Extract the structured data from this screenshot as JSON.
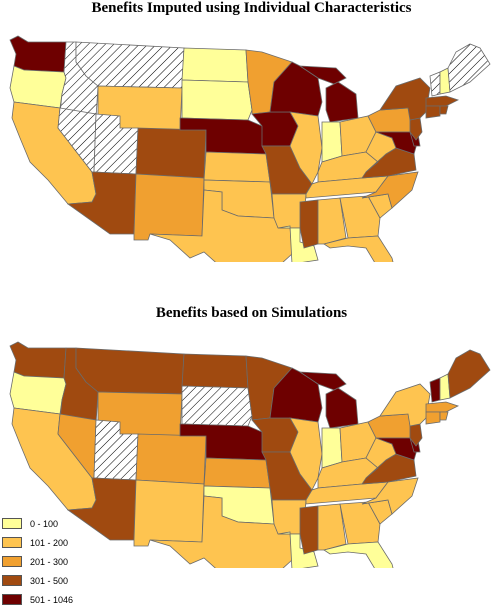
{
  "titles": {
    "top": "Benefits Imputed using Individual Characteristics",
    "bottom": "Benefits based on Simulations"
  },
  "legend": [
    {
      "label": "0 - 100",
      "color": "#ffff99"
    },
    {
      "label": "101 - 200",
      "color": "#fec450"
    },
    {
      "label": "201 - 300",
      "color": "#f0a030"
    },
    {
      "label": "301 - 500",
      "color": "#a04a10"
    },
    {
      "label": "501 - 1046",
      "color": "#6e0000"
    }
  ],
  "no_data_pattern": "diagonal-hatch",
  "maps": [
    {
      "name": "Benefits Imputed using Individual Characteristics",
      "classes": {
        "WA": 4,
        "OR": 0,
        "ID": "nd",
        "MT": "nd",
        "WY": 1,
        "NV": "nd",
        "UT": "nd",
        "CA": 1,
        "AZ": 3,
        "CO": 3,
        "NM": 2,
        "ND": 0,
        "SD": 0,
        "NE": 4,
        "KS": 1,
        "OK": 1,
        "TX": 1,
        "MN": 2,
        "IA": 4,
        "MO": 3,
        "AR": 1,
        "LA": 0,
        "WI": 4,
        "IL": 1,
        "MI": 4,
        "IN": 0,
        "OH": 1,
        "KY": 1,
        "TN": 1,
        "MS": 3,
        "AL": 1,
        "GA": 1,
        "FL": 1,
        "SC": 1,
        "NC": 2,
        "VA": 3,
        "WV": 1,
        "MD": 4,
        "DE": 4,
        "NJ": 3,
        "PA": 2,
        "NY": 3,
        "VT": "nd",
        "NH": 0,
        "ME": "nd",
        "MA": 3,
        "CT": 3,
        "RI": 3
      }
    },
    {
      "name": "Benefits based on Simulations",
      "classes": {
        "WA": 3,
        "OR": 0,
        "ID": 3,
        "MT": 3,
        "WY": 2,
        "NV": 2,
        "UT": "nd",
        "CA": 1,
        "AZ": 3,
        "CO": 2,
        "NM": 1,
        "ND": 3,
        "SD": "nd",
        "NE": 4,
        "KS": 2,
        "OK": 0,
        "TX": 1,
        "MN": 3,
        "IA": 3,
        "MO": 3,
        "AR": 1,
        "LA": 0,
        "WI": 4,
        "IL": 1,
        "MI": 4,
        "IN": 0,
        "OH": 1,
        "KY": 1,
        "TN": 1,
        "MS": 3,
        "AL": 1,
        "GA": 1,
        "FL": 0,
        "SC": 1,
        "NC": 1,
        "VA": 3,
        "WV": 1,
        "MD": 4,
        "DE": 4,
        "NJ": 3,
        "PA": 2,
        "NY": 1,
        "VT": 4,
        "NH": 0,
        "ME": 3,
        "MA": 2,
        "CT": 2,
        "RI": 2
      }
    }
  ]
}
